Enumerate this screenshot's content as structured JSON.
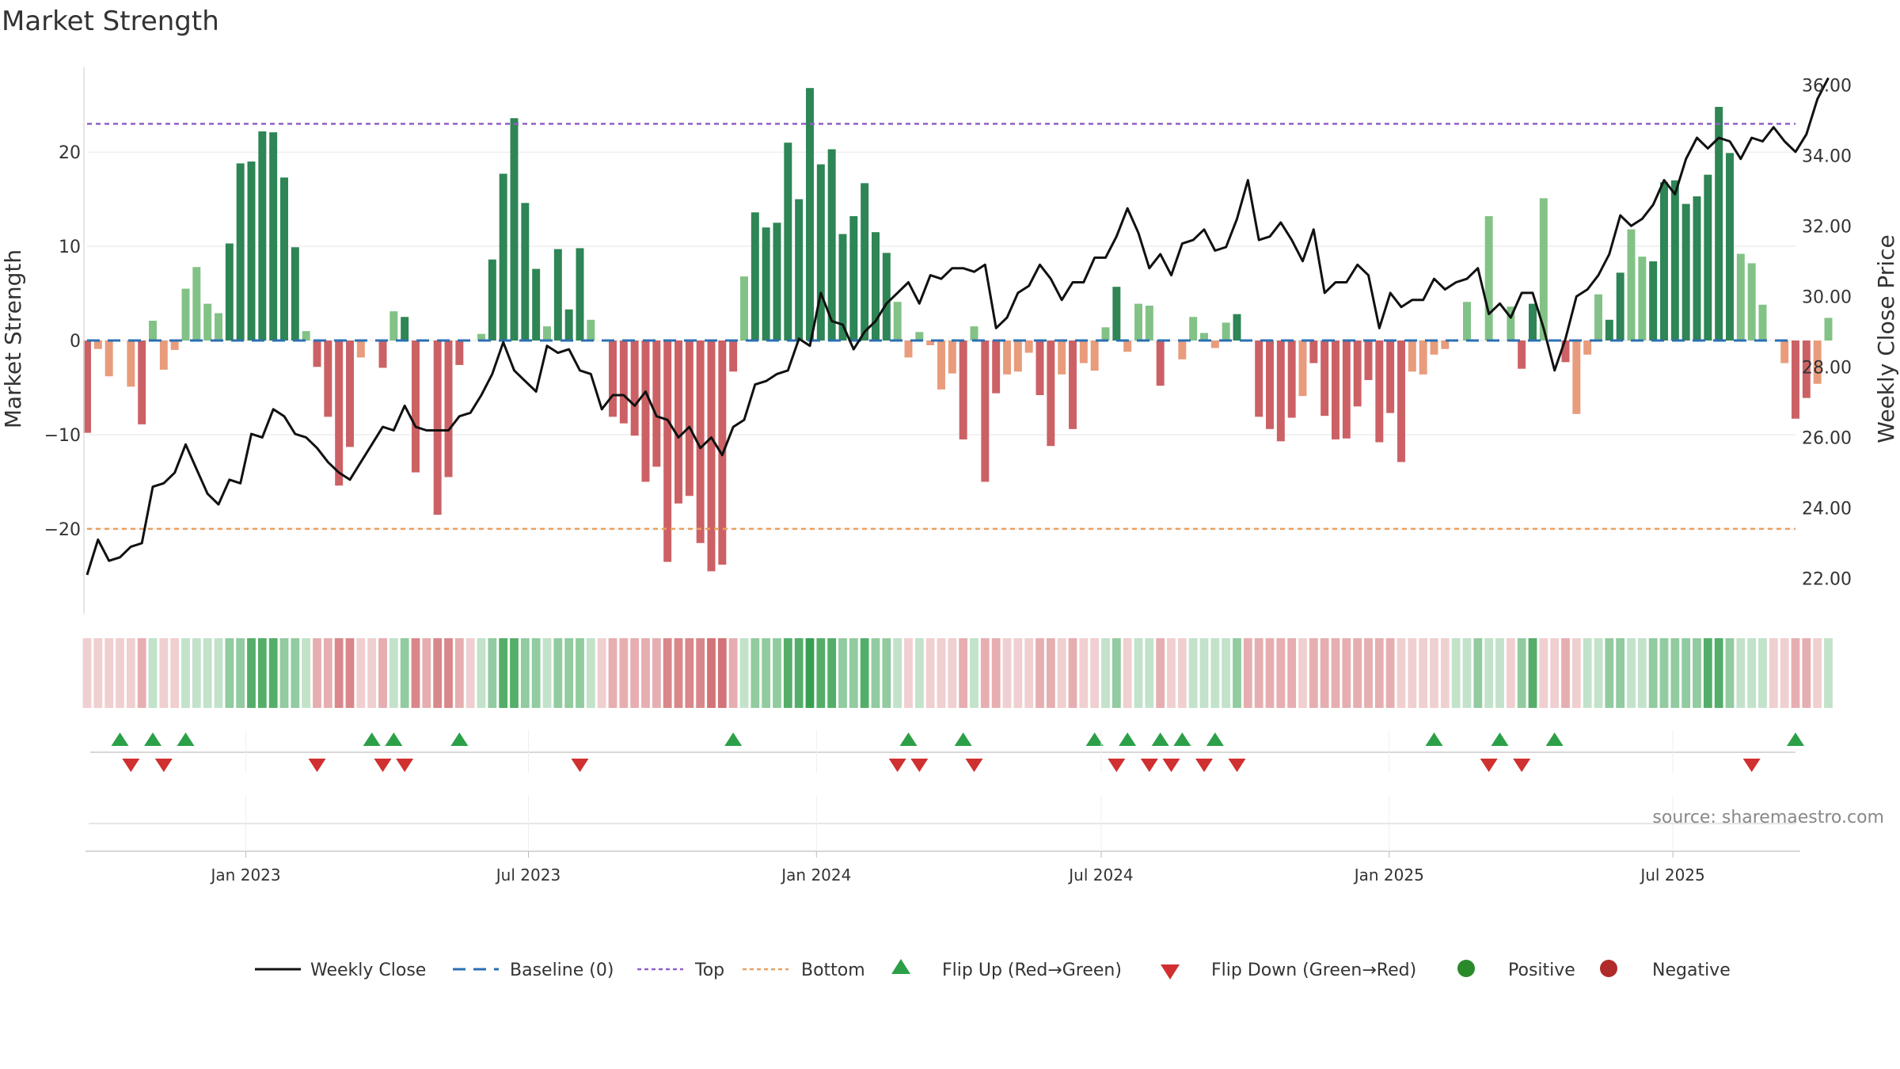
{
  "chart_data": {
    "type": "bar+line",
    "title": "Market Strength",
    "ylabel_left": "Market Strength",
    "ylabel_right": "Weekly Close Price",
    "ylim_left": [
      -29,
      29
    ],
    "ylim_right": [
      21.0,
      36.5
    ],
    "yticks_left": [
      -20,
      -10,
      0,
      10,
      20
    ],
    "ytick_labels_left": [
      "−20",
      "−10",
      "0",
      "10",
      "20"
    ],
    "yticks_right": [
      22,
      24,
      26,
      28,
      30,
      32,
      34,
      36
    ],
    "ytick_labels_right": [
      "22.00",
      "24.00",
      "26.00",
      "28.00",
      "30.00",
      "32.00",
      "34.00",
      "36.00"
    ],
    "top_threshold": 23,
    "bottom_threshold": -20,
    "x_tick_labels": [
      "Jan 2023",
      "Jul 2023",
      "Jan 2024",
      "Jul 2024",
      "Jan 2025",
      "Jul 2025"
    ],
    "x_tick_weeks": [
      14.5,
      40.3,
      66.6,
      92.6,
      118.9,
      144.8
    ],
    "weeks": 157,
    "strength": [
      -9.8,
      -0.9,
      -3.8,
      0,
      -4.9,
      -8.9,
      2.1,
      -3.1,
      -1,
      5.5,
      7.8,
      3.9,
      2.9,
      10.3,
      18.8,
      19,
      22.2,
      22.1,
      17.3,
      9.9,
      1,
      -2.8,
      -8.1,
      -15.4,
      -11.3,
      -1.8,
      0,
      -2.9,
      3.1,
      2.5,
      -14,
      0,
      -18.5,
      -14.5,
      -2.6,
      0,
      0.7,
      8.6,
      17.7,
      23.6,
      14.6,
      7.6,
      1.5,
      9.7,
      3.3,
      9.8,
      2.2,
      0,
      -8.1,
      -8.8,
      -10.1,
      -15,
      -13.4,
      -23.5,
      -17.3,
      -16.5,
      -21.5,
      -24.5,
      -23.8,
      -3.3,
      6.8,
      13.6,
      12,
      12.5,
      21,
      15,
      26.8,
      18.7,
      20.3,
      11.3,
      13.2,
      16.7,
      11.5,
      9.3,
      4.1,
      -1.8,
      0.9,
      -0.5,
      -5.2,
      -3.5,
      -10.5,
      1.5,
      -15,
      -5.6,
      -3.6,
      -3.3,
      -1.3,
      -5.8,
      -11.2,
      -3.6,
      -9.4,
      -2.4,
      -3.2,
      1.4,
      5.7,
      -1.2,
      3.9,
      3.7,
      -4.8,
      0,
      -2,
      2.5,
      0.8,
      -0.8,
      1.9,
      2.8,
      0,
      -8.1,
      -9.4,
      -10.7,
      -8.2,
      -5.9,
      -2.4,
      -8,
      -10.5,
      -10.4,
      -7,
      -4.2,
      -10.8,
      -7.7,
      -12.9,
      -3.3,
      -3.6,
      -1.5,
      -0.9,
      0,
      4.1,
      0,
      13.2,
      0,
      3.6,
      -3,
      3.9,
      15.1,
      0,
      -2.3,
      -7.8,
      -1.5,
      4.9,
      2.2,
      7.2,
      11.8,
      8.9,
      8.4,
      16.8,
      17,
      14.5,
      15.3,
      17.6,
      24.8,
      19.9,
      9.2,
      8.2,
      3.8,
      0,
      -2.4,
      -8.3,
      -6.1,
      -4.6,
      2.4
    ],
    "close": [
      22.1,
      23.1,
      22.5,
      22.6,
      22.9,
      23.0,
      24.6,
      24.7,
      25.0,
      25.8,
      25.1,
      24.4,
      24.1,
      24.8,
      24.7,
      26.1,
      26.0,
      26.8,
      26.6,
      26.1,
      26.0,
      25.7,
      25.3,
      25.0,
      24.8,
      25.3,
      25.8,
      26.3,
      26.2,
      26.9,
      26.3,
      26.2,
      26.2,
      26.2,
      26.6,
      26.7,
      27.2,
      27.8,
      28.7,
      27.9,
      27.6,
      27.3,
      28.6,
      28.4,
      28.5,
      27.9,
      27.8,
      26.8,
      27.2,
      27.2,
      26.9,
      27.3,
      26.6,
      26.5,
      26.0,
      26.3,
      25.7,
      26.0,
      25.5,
      26.3,
      26.5,
      27.5,
      27.6,
      27.8,
      27.9,
      28.8,
      28.6,
      30.1,
      29.3,
      29.2,
      28.5,
      29.0,
      29.3,
      29.8,
      30.1,
      30.4,
      29.8,
      30.6,
      30.5,
      30.8,
      30.8,
      30.7,
      30.9,
      29.1,
      29.4,
      30.1,
      30.3,
      30.9,
      30.5,
      29.9,
      30.4,
      30.4,
      31.1,
      31.1,
      31.7,
      32.5,
      31.8,
      30.8,
      31.2,
      30.6,
      31.5,
      31.6,
      31.9,
      31.3,
      31.4,
      32.2,
      33.3,
      31.6,
      31.7,
      32.1,
      31.6,
      31.0,
      31.9,
      30.1,
      30.4,
      30.4,
      30.9,
      30.6,
      29.1,
      30.1,
      29.7,
      29.9,
      29.9,
      30.5,
      30.2,
      30.4,
      30.5,
      30.8,
      29.5,
      29.8,
      29.4,
      30.1,
      30.1,
      29.1,
      27.9,
      28.8,
      30.0,
      30.2,
      30.6,
      31.2,
      32.3,
      32.0,
      32.2,
      32.6,
      33.3,
      32.9,
      33.9,
      34.5,
      34.2,
      34.5,
      34.4,
      33.9,
      34.5,
      34.4,
      34.8,
      34.4,
      34.1,
      34.6,
      35.6,
      36.2
    ],
    "shade_levels": [
      -1,
      -1,
      -1,
      -1,
      -1,
      -2,
      1,
      -1,
      -1,
      1,
      1,
      1,
      1,
      2,
      2,
      3,
      3,
      3,
      2,
      2,
      1,
      -2,
      -2,
      -3,
      -3,
      -1,
      -1,
      -2,
      1,
      2,
      -3,
      -2,
      -3,
      -3,
      -2,
      -1,
      1,
      2,
      3,
      3,
      2,
      2,
      1,
      2,
      2,
      2,
      1,
      -1,
      -2,
      -2,
      -2,
      -2,
      -2,
      -3,
      -3,
      -3,
      -3,
      -4,
      -4,
      -2,
      1,
      2,
      2,
      2,
      3,
      3,
      4,
      3,
      3,
      2,
      2,
      3,
      2,
      2,
      1,
      -1,
      1,
      -1,
      -1,
      -1,
      -2,
      1,
      -2,
      -2,
      -1,
      -1,
      -1,
      -2,
      -2,
      -1,
      -2,
      -1,
      -1,
      1,
      2,
      -1,
      1,
      1,
      -2,
      -1,
      -1,
      1,
      1,
      1,
      1,
      2,
      -2,
      -2,
      -2,
      -2,
      -2,
      -1,
      -2,
      -2,
      -2,
      -2,
      -2,
      -2,
      -2,
      -2,
      -1,
      -1,
      -1,
      -1,
      -1,
      1,
      1,
      2,
      1,
      1,
      -1,
      2,
      3,
      -1,
      -1,
      -2,
      -1,
      1,
      1,
      2,
      2,
      1,
      1,
      2,
      2,
      2,
      2,
      2,
      3,
      3,
      2,
      1,
      1,
      1,
      -1,
      -1,
      -2,
      -2,
      -1,
      1
    ],
    "flip_up_weeks": [
      3,
      6,
      9,
      26,
      28,
      34,
      59,
      75,
      80,
      92,
      95,
      98,
      100,
      103,
      123,
      129,
      134,
      156
    ],
    "flip_down_weeks": [
      4,
      7,
      21,
      27,
      29,
      45,
      74,
      76,
      81,
      94,
      97,
      99,
      102,
      105,
      128,
      131,
      152
    ],
    "legend": [
      "Weekly Close",
      "Baseline (0)",
      "Top",
      "Bottom",
      "Flip Up (Red→Green)",
      "Flip Down (Green→Red)",
      "Positive",
      "Negative"
    ],
    "legend_placement": "bottom-center",
    "colors": {
      "pos_strong": "#2e8555",
      "pos_weak": "#82c286",
      "neg_strong": "#cc6165",
      "neg_weak": "#e89c7c",
      "line": "#111111",
      "baseline": "#2b6fb3",
      "top": "#9060c8",
      "bottom": "#e8a060",
      "flip_up": "#2ca048",
      "flip_down": "#d03030",
      "legend_positive": "#2a8a2a",
      "legend_negative": "#b02a2a",
      "grid": "#e6e6e6"
    }
  },
  "source": "source: sharemaestro.com"
}
